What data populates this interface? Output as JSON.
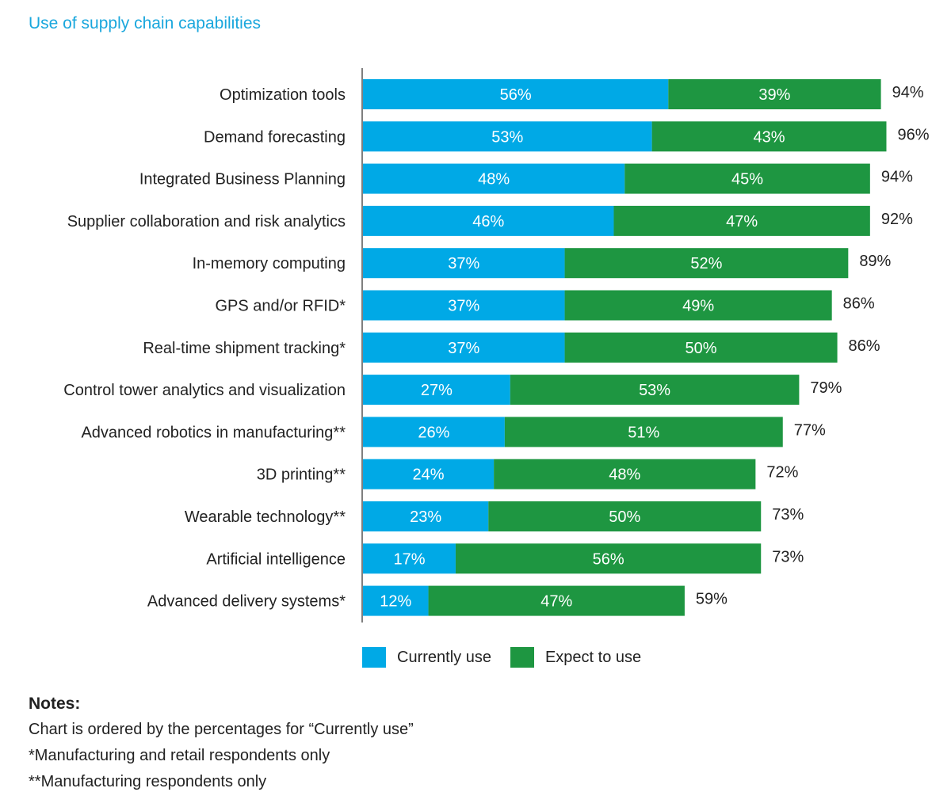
{
  "title": "Use of supply chain capabilities",
  "chart_data": {
    "type": "bar",
    "orientation": "horizontal",
    "stacked": true,
    "title": "Use of supply chain capabilities",
    "categories": [
      "Optimization tools",
      "Demand forecasting",
      "Integrated Business Planning",
      "Supplier collaboration and risk analytics",
      "In-memory computing",
      "GPS and/or RFID*",
      "Real-time shipment tracking*",
      "Control tower analytics and visualization",
      "Advanced robotics in manufacturing**",
      "3D printing**",
      "Wearable technology**",
      "Artificial intelligence",
      "Advanced delivery systems*"
    ],
    "series": [
      {
        "name": "Currently use",
        "color": "#00a9e6",
        "values": [
          56,
          53,
          48,
          46,
          37,
          37,
          37,
          27,
          26,
          24,
          23,
          17,
          12
        ],
        "labels": [
          "56%",
          "53%",
          "48%",
          "46%",
          "37%",
          "37%",
          "37%",
          "27%",
          "26%",
          "24%",
          "23%",
          "17%",
          "12%"
        ]
      },
      {
        "name": "Expect to use",
        "color": "#1e9641",
        "values": [
          39,
          43,
          45,
          47,
          52,
          49,
          50,
          53,
          51,
          48,
          50,
          56,
          47
        ],
        "labels": [
          "39%",
          "43%",
          "45%",
          "47%",
          "52%",
          "49%",
          "50%",
          "53%",
          "51%",
          "48%",
          "50%",
          "56%",
          "47%"
        ]
      }
    ],
    "totals": [
      "94%",
      "96%",
      "94%",
      "92%",
      "89%",
      "86%",
      "86%",
      "79%",
      "77%",
      "72%",
      "73%",
      "73%",
      "59%"
    ],
    "xlim": [
      0,
      100
    ],
    "grid": false,
    "legend_position": "bottom"
  },
  "legend": {
    "current_label": "Currently use",
    "expect_label": "Expect to use",
    "current_color": "#00a9e6",
    "expect_color": "#1e9641"
  },
  "notes": {
    "title": "Notes:",
    "lines": [
      "Chart is ordered by the percentages for “Currently use”",
      "*Manufacturing and retail respondents only",
      "**Manufacturing respondents only"
    ]
  }
}
